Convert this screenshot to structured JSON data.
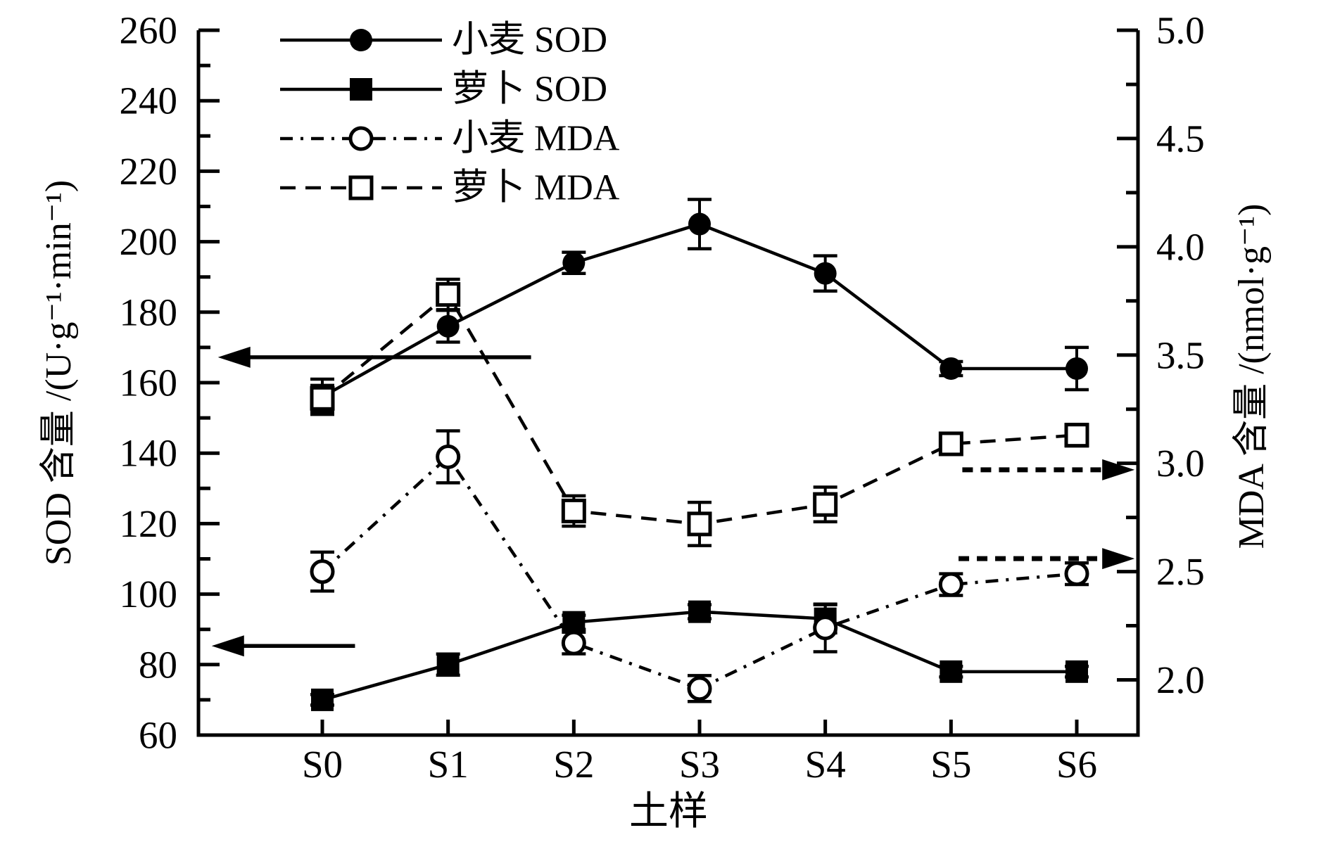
{
  "figure": {
    "background": "#ffffff",
    "ink_color": "#000000"
  },
  "chart_data": {
    "type": "line",
    "title": "",
    "xlabel": "土样",
    "ylabel_left": "SOD 含量 /(U·g⁻¹·min⁻¹)",
    "ylabel_right": "MDA 含量 /(nmol·g⁻¹)",
    "categories": [
      "S0",
      "S1",
      "S2",
      "S3",
      "S4",
      "S5",
      "S6"
    ],
    "left_axis": {
      "min": 60,
      "max": 260,
      "major_step": 20,
      "minor_step": 10,
      "labels": [
        "60",
        "80",
        "100",
        "120",
        "140",
        "160",
        "180",
        "200",
        "220",
        "240",
        "260"
      ]
    },
    "right_axis": {
      "min": 1.745,
      "max": 5.0,
      "major_step": 0.5,
      "minor_step": 0.25,
      "labels": [
        "2.0",
        "2.5",
        "3.0",
        "3.5",
        "4.0",
        "4.5",
        "5.0"
      ]
    },
    "series": [
      {
        "name": "小麦 SOD",
        "slug": "wheat-sod",
        "axis": "left",
        "marker": "filled-circle",
        "line": "solid",
        "values": [
          156,
          176,
          194,
          205,
          191,
          164,
          164
        ],
        "errors": [
          5,
          4.5,
          3,
          7,
          5,
          2,
          6
        ]
      },
      {
        "name": "萝卜 SOD",
        "slug": "radish-sod",
        "axis": "left",
        "marker": "filled-square",
        "line": "solid",
        "values": [
          70,
          80,
          92,
          95,
          93,
          78,
          78
        ],
        "errors": [
          1.5,
          3,
          2,
          2,
          4,
          1.5,
          1.5
        ]
      },
      {
        "name": "小麦 MDA",
        "slug": "wheat-mda",
        "axis": "right",
        "marker": "open-circle",
        "line": "dash-dot",
        "values": [
          2.5,
          3.03,
          2.17,
          1.96,
          2.24,
          2.44,
          2.49
        ],
        "errors": [
          0.09,
          0.12,
          0.05,
          0.06,
          0.11,
          0.05,
          0.05
        ]
      },
      {
        "name": "萝卜 MDA",
        "slug": "radish-mda",
        "axis": "right",
        "marker": "open-square",
        "line": "dash",
        "values": [
          3.3,
          3.78,
          2.78,
          2.72,
          2.81,
          3.09,
          3.13
        ],
        "errors": [
          0.06,
          0.07,
          0.07,
          0.1,
          0.08,
          0.04,
          0.05
        ]
      }
    ],
    "annotations": {
      "arrows": [
        {
          "points_to": "left-axis",
          "axis": "left",
          "value": 167.2,
          "from_category": 1.66,
          "to_category": -0.83,
          "style": "solid"
        },
        {
          "points_to": "left-axis",
          "axis": "left",
          "value": 85.3,
          "from_category": 0.26,
          "to_category": -0.88,
          "style": "solid"
        },
        {
          "points_to": "right-axis",
          "axis": "right",
          "value": 2.97,
          "from_category": 5.09,
          "to_category": 6.46,
          "style": "dashed"
        },
        {
          "points_to": "right-axis",
          "axis": "right",
          "value": 2.56,
          "from_category": 5.06,
          "to_category": 6.46,
          "style": "dashed"
        }
      ]
    },
    "legend_position": "top-left-inside"
  }
}
